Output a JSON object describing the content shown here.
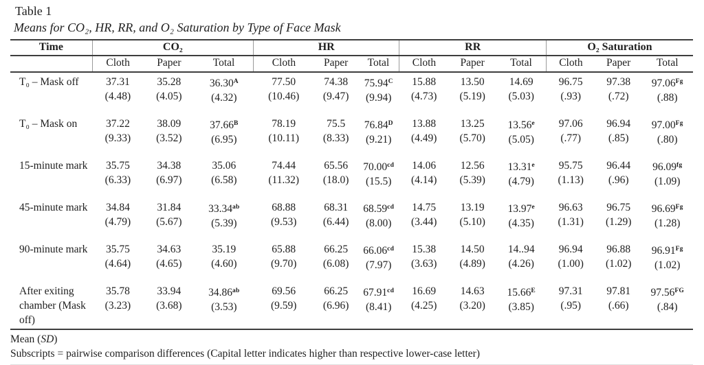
{
  "page": {
    "title": "Table 1",
    "subtitle": "Means for CO₂, HR, RR, and O₂ Saturation by Type of Face Mask"
  },
  "table": {
    "col_groups": [
      {
        "label": "Time"
      },
      {
        "label": "CO₂"
      },
      {
        "label": "HR"
      },
      {
        "label": "RR"
      },
      {
        "label": "O₂ Saturation"
      }
    ],
    "sub_headers": [
      "Cloth",
      "Paper",
      "Total",
      "Cloth",
      "Paper",
      "Total",
      "Cloth",
      "Paper",
      "Total",
      "Cloth",
      "Paper",
      "Total"
    ],
    "rows": [
      {
        "label": "T₀ – Mask off",
        "cells": [
          {
            "mean": "37.31",
            "sup": "",
            "sd": "(4.48)"
          },
          {
            "mean": "35.28",
            "sup": "",
            "sd": "(4.05)"
          },
          {
            "mean": "36.30",
            "sup": "A",
            "sd": "(4.32)"
          },
          {
            "mean": "77.50",
            "sup": "",
            "sd": "(10.46)"
          },
          {
            "mean": "74.38",
            "sup": "",
            "sd": "(9.47)"
          },
          {
            "mean": "75.94",
            "sup": "C",
            "sd": "(9.94)"
          },
          {
            "mean": "15.88",
            "sup": "",
            "sd": "(4.73)"
          },
          {
            "mean": "13.50",
            "sup": "",
            "sd": "(5.19)"
          },
          {
            "mean": "14.69",
            "sup": "",
            "sd": "(5.03)"
          },
          {
            "mean": "96.75",
            "sup": "",
            "sd": "(.93)"
          },
          {
            "mean": "97.38",
            "sup": "",
            "sd": "(.72)"
          },
          {
            "mean": "97.06",
            "sup": "Fg",
            "sd": "(.88)"
          }
        ]
      },
      {
        "label": "T₀ – Mask on",
        "cells": [
          {
            "mean": "37.22",
            "sup": "",
            "sd": "(9.33)"
          },
          {
            "mean": "38.09",
            "sup": "",
            "sd": "(3.52)"
          },
          {
            "mean": "37.66",
            "sup": "B",
            "sd": "(6.95)"
          },
          {
            "mean": "78.19",
            "sup": "",
            "sd": "(10.11)"
          },
          {
            "mean": "75.5",
            "sup": "",
            "sd": "(8.33)"
          },
          {
            "mean": "76.84",
            "sup": "D",
            "sd": "(9.21)"
          },
          {
            "mean": "13.88",
            "sup": "",
            "sd": "(4.49)"
          },
          {
            "mean": "13.25",
            "sup": "",
            "sd": "(5.70)"
          },
          {
            "mean": "13.56",
            "sup": "e",
            "sd": "(5.05)"
          },
          {
            "mean": "97.06",
            "sup": "",
            "sd": "(.77)"
          },
          {
            "mean": "96.94",
            "sup": "",
            "sd": "(.85)"
          },
          {
            "mean": "97.00",
            "sup": "Fg",
            "sd": "(.80)"
          }
        ]
      },
      {
        "label": "15-minute mark",
        "cells": [
          {
            "mean": "35.75",
            "sup": "",
            "sd": "(6.33)"
          },
          {
            "mean": "34.38",
            "sup": "",
            "sd": "(6.97)"
          },
          {
            "mean": "35.06",
            "sup": "",
            "sd": "(6.58)"
          },
          {
            "mean": "74.44",
            "sup": "",
            "sd": "(11.32)"
          },
          {
            "mean": "65.56",
            "sup": "",
            "sd": "(18.0)"
          },
          {
            "mean": "70.00",
            "sup": "cd",
            "sd": "(15.5)"
          },
          {
            "mean": "14.06",
            "sup": "",
            "sd": "(4.14)"
          },
          {
            "mean": "12.56",
            "sup": "",
            "sd": "(5.39)"
          },
          {
            "mean": "13.31",
            "sup": "e",
            "sd": "(4.79)"
          },
          {
            "mean": "95.75",
            "sup": "",
            "sd": "(1.13)"
          },
          {
            "mean": "96.44",
            "sup": "",
            "sd": "(.96)"
          },
          {
            "mean": "96.09",
            "sup": "fg",
            "sd": "(1.09)"
          }
        ]
      },
      {
        "label": "45-minute mark",
        "cells": [
          {
            "mean": "34.84",
            "sup": "",
            "sd": "(4.79)"
          },
          {
            "mean": "31.84",
            "sup": "",
            "sd": "(5.67)"
          },
          {
            "mean": "33.34",
            "sup": "ab",
            "sd": "(5.39)"
          },
          {
            "mean": "68.88",
            "sup": "",
            "sd": "(9.53)"
          },
          {
            "mean": "68.31",
            "sup": "",
            "sd": "(6.44)"
          },
          {
            "mean": "68.59",
            "sup": "cd",
            "sd": "(8.00)"
          },
          {
            "mean": "14.75",
            "sup": "",
            "sd": "(3.44)"
          },
          {
            "mean": "13.19",
            "sup": "",
            "sd": "(5.10)"
          },
          {
            "mean": "13.97",
            "sup": "e",
            "sd": "(4.35)"
          },
          {
            "mean": "96.63",
            "sup": "",
            "sd": "(1.31)"
          },
          {
            "mean": "96.75",
            "sup": "",
            "sd": "(1.29)"
          },
          {
            "mean": "96.69",
            "sup": "Fg",
            "sd": "(1.28)"
          }
        ]
      },
      {
        "label": "90-minute mark",
        "cells": [
          {
            "mean": "35.75",
            "sup": "",
            "sd": "(4.64)"
          },
          {
            "mean": "34.63",
            "sup": "",
            "sd": "(4.65)"
          },
          {
            "mean": "35.19",
            "sup": "",
            "sd": "(4.60)"
          },
          {
            "mean": "65.88",
            "sup": "",
            "sd": "(9.70)"
          },
          {
            "mean": "66.25",
            "sup": "",
            "sd": "(6.08)"
          },
          {
            "mean": "66.06",
            "sup": "cd",
            "sd": "(7.97)"
          },
          {
            "mean": "15.38",
            "sup": "",
            "sd": "(3.63)"
          },
          {
            "mean": "14.50",
            "sup": "",
            "sd": "(4.89)"
          },
          {
            "mean": "14..94",
            "sup": "",
            "sd": "(4.26)"
          },
          {
            "mean": "96.94",
            "sup": "",
            "sd": "(1.00)"
          },
          {
            "mean": "96.88",
            "sup": "",
            "sd": "(1.02)"
          },
          {
            "mean": "96.91",
            "sup": "Fg",
            "sd": "(1.02)"
          }
        ]
      },
      {
        "label": "After exiting chamber (Mask off)",
        "cells": [
          {
            "mean": "35.78",
            "sup": "",
            "sd": "(3.23)"
          },
          {
            "mean": "33.94",
            "sup": "",
            "sd": "(3.68)"
          },
          {
            "mean": "34.86",
            "sup": "ab",
            "sd": "(3.53)"
          },
          {
            "mean": "69.56",
            "sup": "",
            "sd": "(9.59)"
          },
          {
            "mean": "66.25",
            "sup": "",
            "sd": "(6.96)"
          },
          {
            "mean": "67.91",
            "sup": "cd",
            "sd": "(8.41)"
          },
          {
            "mean": "16.69",
            "sup": "",
            "sd": "(4.25)"
          },
          {
            "mean": "14.63",
            "sup": "",
            "sd": "(3.20)"
          },
          {
            "mean": "15.66",
            "sup": "E",
            "sd": "(3.85)"
          },
          {
            "mean": "97.31",
            "sup": "",
            "sd": "(.95)"
          },
          {
            "mean": "97.81",
            "sup": "",
            "sd": "(.66)"
          },
          {
            "mean": "97.56",
            "sup": "FG",
            "sd": "(.84)"
          }
        ]
      }
    ],
    "notes": {
      "mean_note": {
        "prefix": "Mean (",
        "italic": "SD",
        "suffix": ")"
      },
      "subscript_note": "Subscripts = pairwise comparison differences (Capital letter indicates higher than respective lower-case letter)"
    }
  }
}
